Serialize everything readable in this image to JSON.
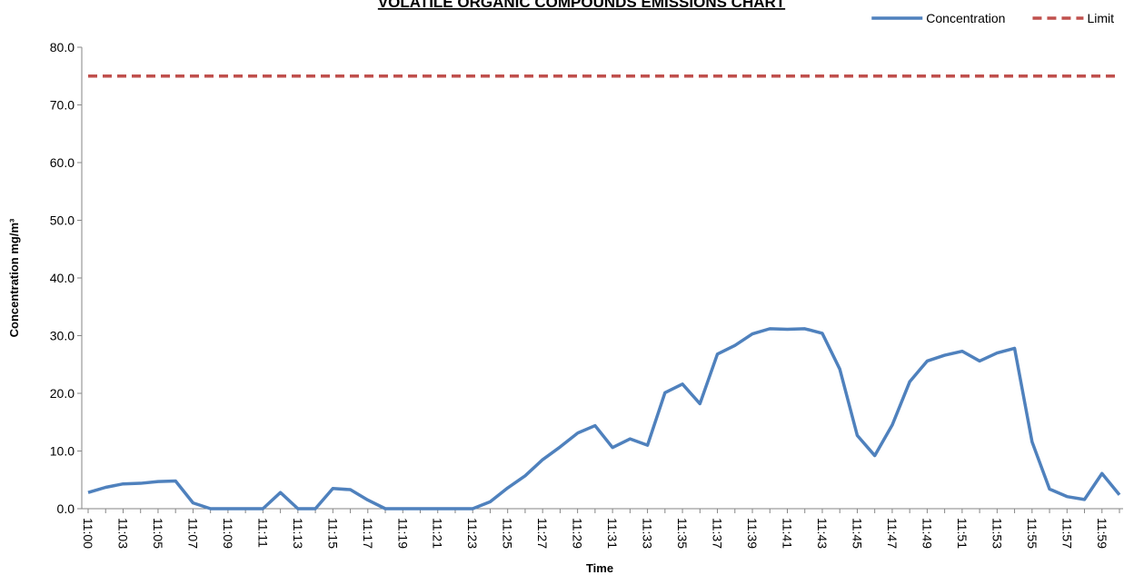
{
  "chart_data": {
    "type": "line",
    "title": "VOLATILE ORGANIC COMPOUNDS EMISSIONS CHART",
    "xlabel": "Time",
    "ylabel": "Concentration mg/m³",
    "categories": [
      "11:00",
      null,
      "11:03",
      null,
      "11:05",
      null,
      "11:07",
      null,
      "11:09",
      null,
      "11:11",
      null,
      "11:13",
      null,
      "11:15",
      null,
      "11:17",
      null,
      "11:19",
      null,
      "11:21",
      null,
      "11:23",
      null,
      "11:25",
      null,
      "11:27",
      null,
      "11:29",
      null,
      "11:31",
      null,
      "11:33",
      null,
      "11:35",
      null,
      "11:37",
      null,
      "11:39",
      null,
      "11:41",
      null,
      "11:43",
      null,
      "11:45",
      null,
      "11:47",
      null,
      "11:49",
      null,
      "11:51",
      null,
      "11:53",
      null,
      "11:55",
      null,
      "11:57",
      null,
      "11:59",
      null
    ],
    "series": [
      {
        "name": "Concentration",
        "color": "#4f81bd",
        "dash": false,
        "values": [
          2.8,
          3.7,
          4.3,
          4.4,
          4.7,
          4.8,
          1.0,
          0,
          0,
          0,
          0,
          2.8,
          0,
          0,
          3.5,
          3.3,
          1.5,
          0,
          0,
          0,
          0,
          0,
          0,
          1.2,
          3.6,
          5.7,
          8.5,
          10.7,
          13.1,
          14.4,
          10.6,
          12.1,
          11.0,
          20.1,
          21.6,
          18.2,
          26.8,
          28.3,
          30.3,
          31.2,
          31.1,
          31.2,
          30.4,
          24.2,
          12.7,
          9.2,
          14.5,
          22.0,
          25.6,
          26.6,
          27.3,
          25.6,
          27.0,
          27.8,
          11.6,
          3.4,
          2.1,
          1.6,
          6.1,
          2.4
        ]
      },
      {
        "name": "Limit",
        "color": "#c0504d",
        "dash": true,
        "values": [
          75,
          75,
          75,
          75,
          75,
          75,
          75,
          75,
          75,
          75,
          75,
          75,
          75,
          75,
          75,
          75,
          75,
          75,
          75,
          75,
          75,
          75,
          75,
          75,
          75,
          75,
          75,
          75,
          75,
          75,
          75,
          75,
          75,
          75,
          75,
          75,
          75,
          75,
          75,
          75,
          75,
          75,
          75,
          75,
          75,
          75,
          75,
          75,
          75,
          75,
          75,
          75,
          75,
          75,
          75,
          75,
          75,
          75,
          75,
          75
        ]
      }
    ],
    "ylim": [
      0,
      80
    ],
    "yticks": [
      {
        "value": 0,
        "label": "0.0"
      },
      {
        "value": 10,
        "label": "10.0"
      },
      {
        "value": 20,
        "label": "20.0"
      },
      {
        "value": 30,
        "label": "30.0"
      },
      {
        "value": 40,
        "label": "40.0"
      },
      {
        "value": 50,
        "label": "50.0"
      },
      {
        "value": 60,
        "label": "60.0"
      },
      {
        "value": 70,
        "label": "70.0"
      },
      {
        "value": 80,
        "label": "80.0"
      }
    ],
    "grid": false,
    "legend": "top-right"
  }
}
